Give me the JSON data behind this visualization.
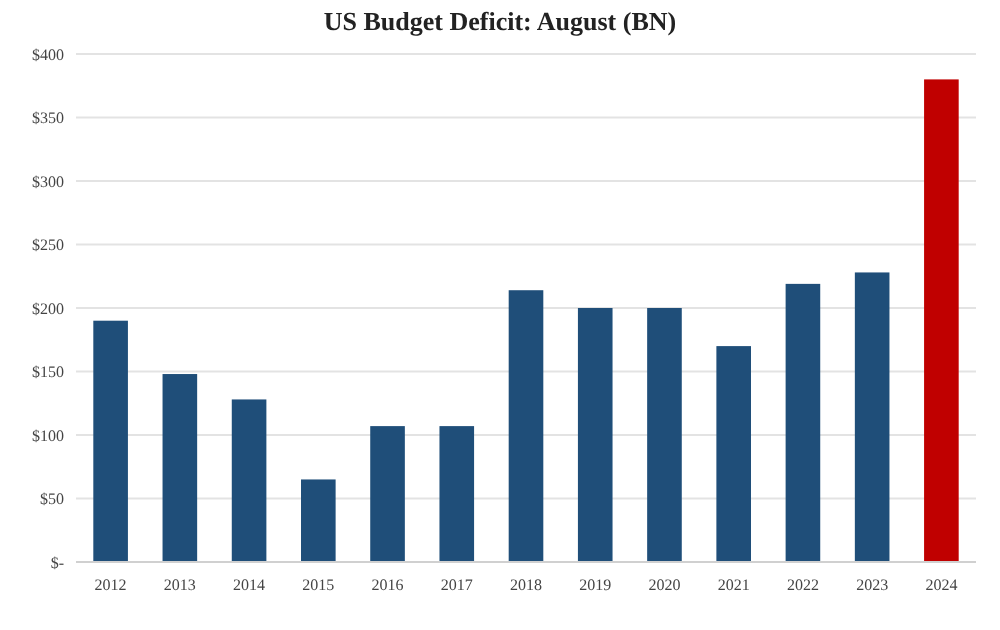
{
  "chart_data": {
    "type": "bar",
    "title": "US Budget Deficit: August  (BN)",
    "categories": [
      "2012",
      "2013",
      "2014",
      "2015",
      "2016",
      "2017",
      "2018",
      "2019",
      "2020",
      "2021",
      "2022",
      "2023",
      "2024"
    ],
    "values": [
      190,
      148,
      128,
      65,
      107,
      107,
      214,
      200,
      200,
      170,
      219,
      228,
      380
    ],
    "colors": [
      "#1f4e79",
      "#1f4e79",
      "#1f4e79",
      "#1f4e79",
      "#1f4e79",
      "#1f4e79",
      "#1f4e79",
      "#1f4e79",
      "#1f4e79",
      "#1f4e79",
      "#1f4e79",
      "#1f4e79",
      "#c00000"
    ],
    "ylim": [
      0,
      400
    ],
    "yticks": [
      {
        "value": 0,
        "label": "$-"
      },
      {
        "value": 50,
        "label": "$50"
      },
      {
        "value": 100,
        "label": "$100"
      },
      {
        "value": 150,
        "label": "$150"
      },
      {
        "value": 200,
        "label": "$200"
      },
      {
        "value": 250,
        "label": "$250"
      },
      {
        "value": 300,
        "label": "$300"
      },
      {
        "value": 350,
        "label": "$350"
      },
      {
        "value": 400,
        "label": "$400"
      }
    ],
    "grid": "y"
  }
}
